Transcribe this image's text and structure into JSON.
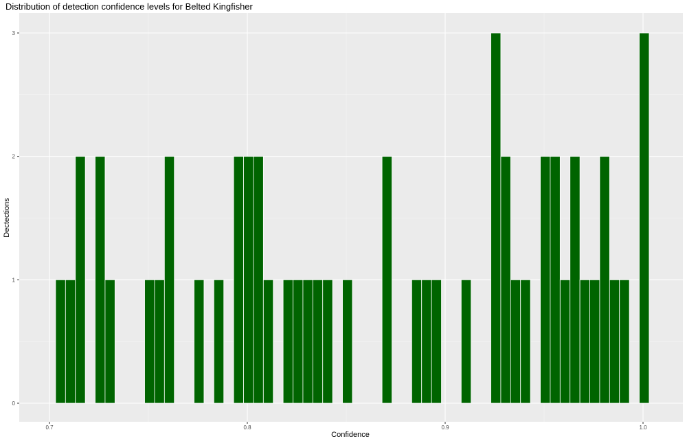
{
  "chart_data": {
    "type": "bar",
    "title": "Distribution of detection confidence levels for Belted Kingfisher",
    "xlabel": "Confidence",
    "ylabel": "Dectections",
    "xlim": [
      0.7,
      1.0
    ],
    "ylim": [
      0,
      3
    ],
    "x_ticks": [
      "0.7",
      "0.8",
      "0.9",
      "1.0"
    ],
    "y_ticks": [
      "0",
      "1",
      "2",
      "3"
    ],
    "bin_width": 0.005,
    "bar_color": "#006400",
    "panel_background": "#EBEBEB",
    "grid": true,
    "bins": [
      {
        "x": 0.7056,
        "count": 1
      },
      {
        "x": 0.7106,
        "count": 1
      },
      {
        "x": 0.7156,
        "count": 2
      },
      {
        "x": 0.7256,
        "count": 2
      },
      {
        "x": 0.7306,
        "count": 1
      },
      {
        "x": 0.7506,
        "count": 1
      },
      {
        "x": 0.7556,
        "count": 1
      },
      {
        "x": 0.7606,
        "count": 2
      },
      {
        "x": 0.7756,
        "count": 1
      },
      {
        "x": 0.7856,
        "count": 1
      },
      {
        "x": 0.7956,
        "count": 2
      },
      {
        "x": 0.8006,
        "count": 2
      },
      {
        "x": 0.8056,
        "count": 2
      },
      {
        "x": 0.8106,
        "count": 1
      },
      {
        "x": 0.8206,
        "count": 1
      },
      {
        "x": 0.8256,
        "count": 1
      },
      {
        "x": 0.8306,
        "count": 1
      },
      {
        "x": 0.8356,
        "count": 1
      },
      {
        "x": 0.8406,
        "count": 1
      },
      {
        "x": 0.8506,
        "count": 1
      },
      {
        "x": 0.8706,
        "count": 2
      },
      {
        "x": 0.8856,
        "count": 1
      },
      {
        "x": 0.8906,
        "count": 1
      },
      {
        "x": 0.8956,
        "count": 1
      },
      {
        "x": 0.9106,
        "count": 1
      },
      {
        "x": 0.9256,
        "count": 3
      },
      {
        "x": 0.9306,
        "count": 2
      },
      {
        "x": 0.9356,
        "count": 1
      },
      {
        "x": 0.9406,
        "count": 1
      },
      {
        "x": 0.9506,
        "count": 2
      },
      {
        "x": 0.9556,
        "count": 2
      },
      {
        "x": 0.9606,
        "count": 1
      },
      {
        "x": 0.9656,
        "count": 2
      },
      {
        "x": 0.9706,
        "count": 1
      },
      {
        "x": 0.9756,
        "count": 1
      },
      {
        "x": 0.9806,
        "count": 2
      },
      {
        "x": 0.9856,
        "count": 1
      },
      {
        "x": 0.9906,
        "count": 1
      },
      {
        "x": 1.0006,
        "count": 3
      }
    ]
  }
}
